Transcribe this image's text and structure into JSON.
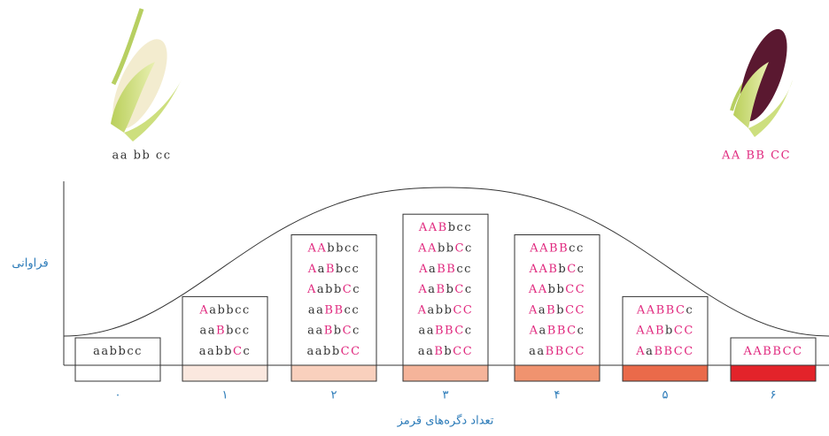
{
  "left_genotype": "aa bb cc",
  "right_genotype": "AA BB CC",
  "y_axis_label": "فراوانی",
  "x_axis_label": "تعداد دگره‌های قرمز",
  "columns": [
    {
      "label": "۰",
      "genotypes": [
        "aabbcc"
      ]
    },
    {
      "label": "۱",
      "genotypes": [
        "Aabbcc",
        "aaBbcc",
        "aabbCc"
      ]
    },
    {
      "label": "۲",
      "genotypes": [
        "AAbbcc",
        "AaBbcc",
        "AabbCc",
        "aaBBcc",
        "aaBbCc",
        "aabbCC"
      ]
    },
    {
      "label": "۳",
      "genotypes": [
        "AABbcc",
        "AAbbCc",
        "AaBBcc",
        "AaBbCc",
        "AabbCC",
        "aaBBCc",
        "aaBbCC"
      ]
    },
    {
      "label": "۴",
      "genotypes": [
        "AABBcc",
        "AABbCc",
        "AAbbCC",
        "AaBbCC",
        "AaBBCc",
        "aaBBCC"
      ]
    },
    {
      "label": "۵",
      "genotypes": [
        "AABBCc",
        "AABbCC",
        "AaBBCC"
      ]
    },
    {
      "label": "۶",
      "genotypes": [
        "AABBCC"
      ]
    }
  ]
}
